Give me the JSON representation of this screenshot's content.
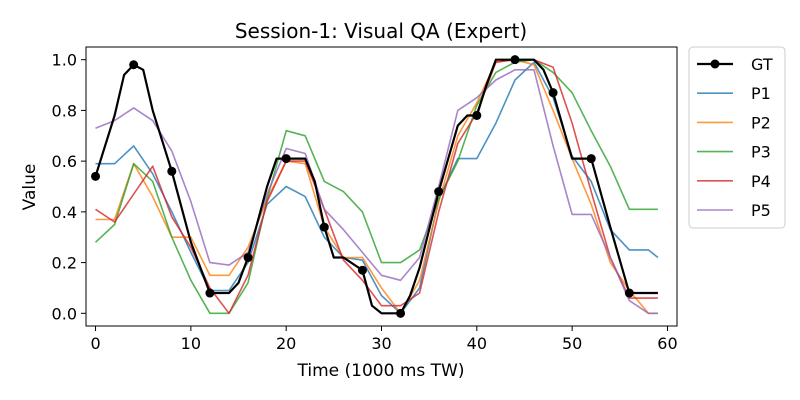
{
  "chart_data": {
    "type": "line",
    "title": "Session-1: Visual QA (Expert)",
    "xlabel": "Time (1000 ms TW)",
    "ylabel": "Value",
    "xlim": [
      -1,
      61
    ],
    "ylim": [
      -0.05,
      1.05
    ],
    "xticks": [
      0,
      10,
      20,
      30,
      40,
      50,
      60
    ],
    "yticks": [
      0.0,
      0.2,
      0.4,
      0.6,
      0.8,
      1.0
    ],
    "grid": false,
    "legend_position": "outside-right",
    "series": [
      {
        "name": "P1",
        "color": "#1f77b4",
        "x": [
          0,
          2,
          4,
          6,
          8,
          10,
          12,
          14,
          16,
          18,
          20,
          22,
          24,
          26,
          28,
          30,
          32,
          34,
          36,
          38,
          40,
          42,
          44,
          46,
          48,
          50,
          52,
          54,
          56,
          58,
          59
        ],
        "y": [
          0.59,
          0.59,
          0.66,
          0.55,
          0.4,
          0.24,
          0.09,
          0.09,
          0.2,
          0.43,
          0.5,
          0.46,
          0.3,
          0.22,
          0.21,
          0.07,
          0.0,
          0.1,
          0.45,
          0.61,
          0.61,
          0.75,
          0.92,
          0.99,
          0.85,
          0.62,
          0.52,
          0.33,
          0.25,
          0.25,
          0.22
        ]
      },
      {
        "name": "P2",
        "color": "#ff7f0e",
        "x": [
          0,
          2,
          4,
          6,
          8,
          10,
          12,
          14,
          16,
          18,
          20,
          22,
          24,
          26,
          28,
          30,
          32,
          34,
          36,
          38,
          40,
          42,
          44,
          46,
          48,
          50,
          52,
          54,
          56,
          58,
          59
        ],
        "y": [
          0.37,
          0.37,
          0.59,
          0.46,
          0.3,
          0.3,
          0.15,
          0.15,
          0.26,
          0.45,
          0.6,
          0.59,
          0.34,
          0.22,
          0.22,
          0.1,
          0.0,
          0.13,
          0.44,
          0.7,
          0.83,
          0.99,
          1.0,
          0.98,
          0.8,
          0.61,
          0.43,
          0.2,
          0.09,
          0.0,
          0.0
        ]
      },
      {
        "name": "P3",
        "color": "#2ca02c",
        "x": [
          0,
          2,
          4,
          6,
          8,
          10,
          12,
          14,
          16,
          18,
          20,
          22,
          24,
          26,
          28,
          30,
          32,
          34,
          36,
          38,
          40,
          42,
          44,
          46,
          48,
          50,
          52,
          54,
          56,
          58,
          59
        ],
        "y": [
          0.28,
          0.35,
          0.59,
          0.52,
          0.3,
          0.13,
          0.0,
          0.0,
          0.12,
          0.45,
          0.72,
          0.7,
          0.52,
          0.48,
          0.4,
          0.2,
          0.2,
          0.25,
          0.45,
          0.6,
          0.82,
          0.95,
          0.99,
          1.0,
          0.95,
          0.87,
          0.72,
          0.58,
          0.41,
          0.41,
          0.41
        ]
      },
      {
        "name": "P4",
        "color": "#d62728",
        "x": [
          0,
          2,
          4,
          6,
          8,
          10,
          12,
          14,
          16,
          18,
          20,
          22,
          24,
          26,
          28,
          30,
          32,
          34,
          36,
          38,
          40,
          42,
          44,
          46,
          48,
          50,
          52,
          54,
          56,
          58,
          59
        ],
        "y": [
          0.41,
          0.36,
          0.47,
          0.58,
          0.38,
          0.26,
          0.1,
          0.0,
          0.15,
          0.44,
          0.6,
          0.6,
          0.41,
          0.21,
          0.13,
          0.03,
          0.03,
          0.08,
          0.4,
          0.67,
          0.79,
          0.99,
          1.0,
          1.0,
          0.97,
          0.75,
          0.48,
          0.22,
          0.06,
          0.06,
          0.06
        ]
      },
      {
        "name": "P5",
        "color": "#9467bd",
        "x": [
          0,
          2,
          4,
          6,
          8,
          10,
          12,
          14,
          16,
          18,
          20,
          22,
          24,
          26,
          28,
          30,
          32,
          34,
          36,
          38,
          40,
          42,
          44,
          46,
          48,
          50,
          52,
          54,
          56,
          58,
          59
        ],
        "y": [
          0.73,
          0.76,
          0.81,
          0.76,
          0.64,
          0.44,
          0.2,
          0.19,
          0.24,
          0.47,
          0.65,
          0.63,
          0.41,
          0.33,
          0.24,
          0.15,
          0.13,
          0.22,
          0.5,
          0.8,
          0.85,
          0.92,
          0.96,
          0.96,
          0.66,
          0.39,
          0.39,
          0.22,
          0.05,
          0.0,
          0.0
        ]
      },
      {
        "name": "GT",
        "color": "#000000",
        "x": [
          0,
          2,
          3,
          4,
          5,
          6,
          8,
          10,
          12,
          14,
          15,
          16,
          18,
          19,
          20,
          22,
          23,
          24,
          25,
          26,
          28,
          29,
          30,
          32,
          33,
          34,
          36,
          38,
          39,
          40,
          41,
          42,
          44,
          46,
          47,
          48,
          49,
          50,
          52,
          54,
          56,
          58,
          59
        ],
        "y": [
          0.54,
          0.78,
          0.94,
          0.98,
          0.96,
          0.8,
          0.56,
          0.28,
          0.08,
          0.08,
          0.12,
          0.22,
          0.5,
          0.61,
          0.61,
          0.61,
          0.52,
          0.34,
          0.22,
          0.22,
          0.17,
          0.03,
          0.0,
          0.0,
          0.07,
          0.18,
          0.48,
          0.74,
          0.78,
          0.78,
          0.9,
          1.0,
          1.0,
          1.0,
          0.96,
          0.87,
          0.74,
          0.61,
          0.61,
          0.34,
          0.08,
          0.08,
          0.08
        ],
        "markers_x": [
          0,
          4,
          8,
          12,
          16,
          20,
          24,
          28,
          32,
          36,
          40,
          44,
          48,
          52,
          56
        ],
        "markers_y": [
          0.54,
          0.98,
          0.56,
          0.08,
          0.22,
          0.61,
          0.34,
          0.17,
          0.0,
          0.48,
          0.78,
          1.0,
          0.87,
          0.61,
          0.08
        ]
      }
    ],
    "legend_order": [
      "GT",
      "P1",
      "P2",
      "P3",
      "P4",
      "P5"
    ]
  }
}
